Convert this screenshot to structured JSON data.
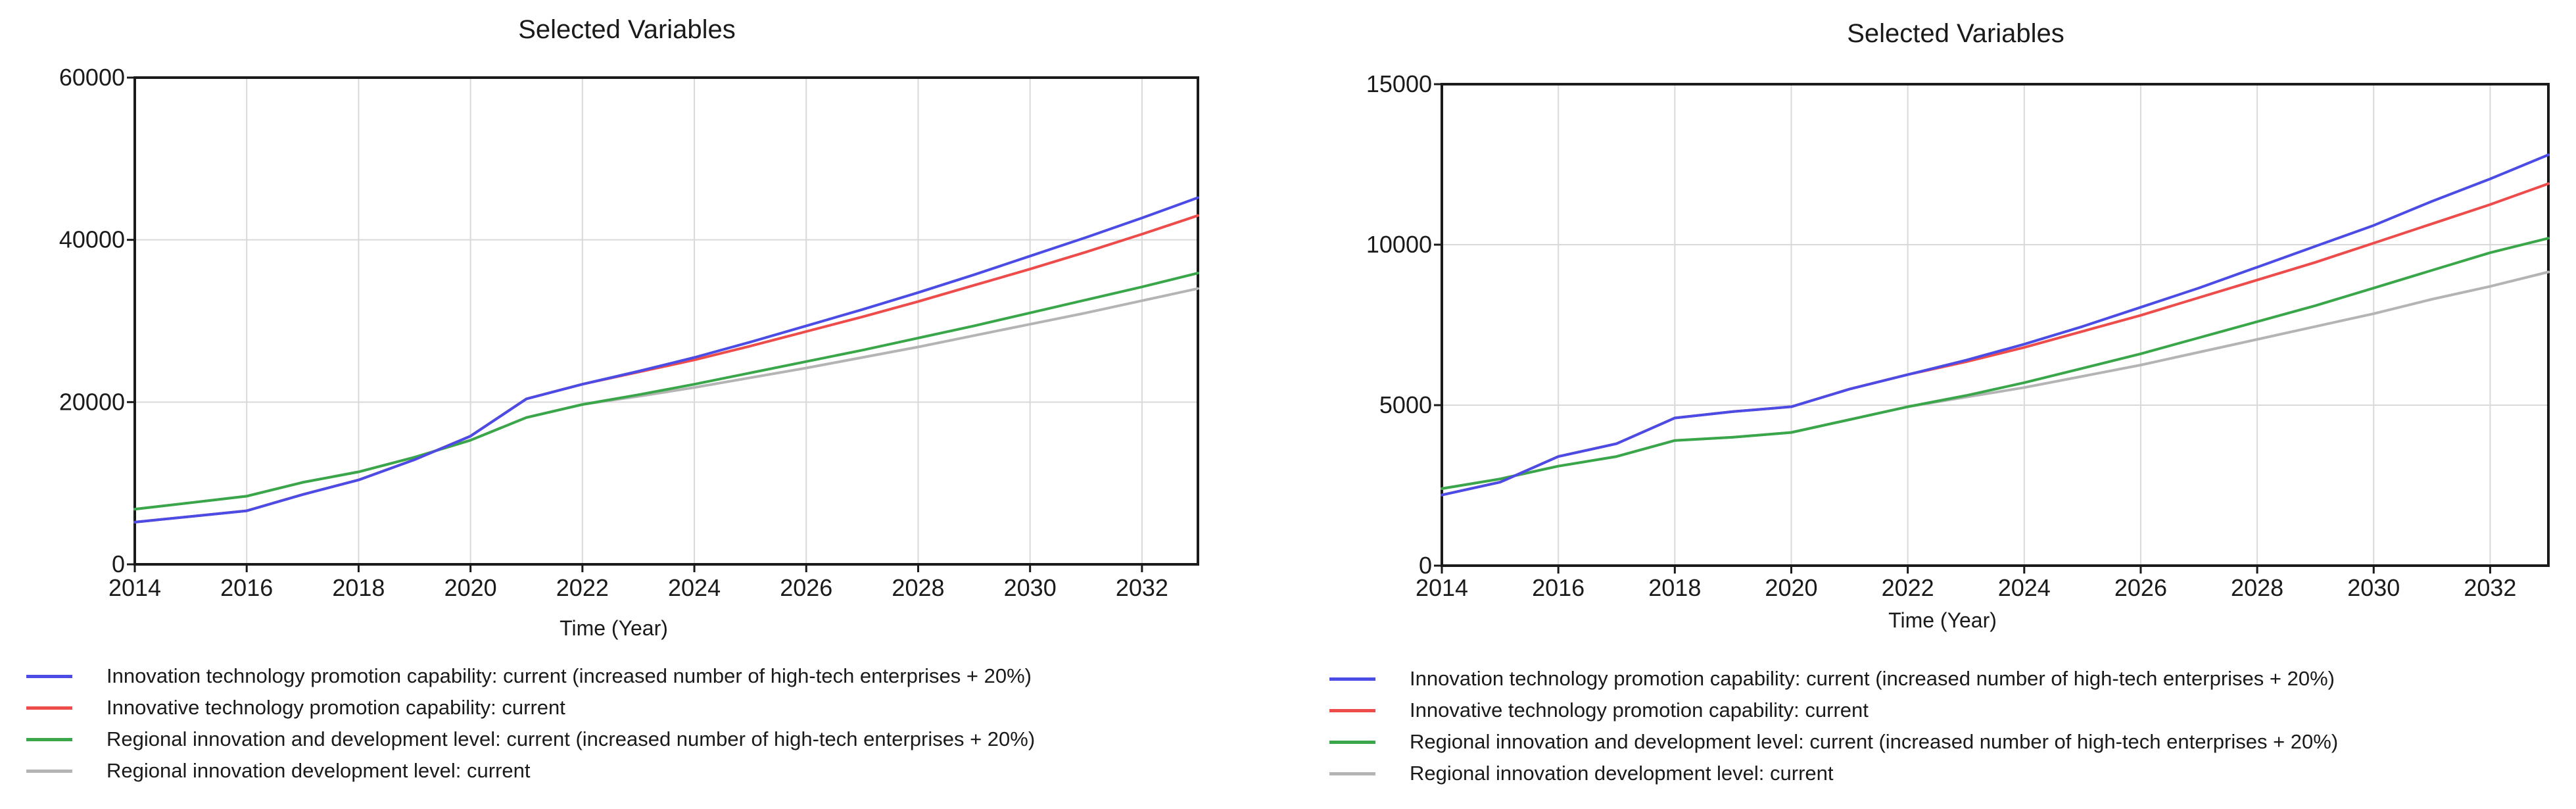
{
  "chart_data": [
    {
      "type": "line",
      "title": "Selected Variables",
      "xlabel": "Time (Year)",
      "ylabel": "",
      "xlim": [
        2014,
        2033
      ],
      "ylim": [
        0,
        60000
      ],
      "x_ticks": [
        2014,
        2016,
        2018,
        2020,
        2022,
        2024,
        2026,
        2028,
        2030,
        2032
      ],
      "y_ticks": [
        0,
        20000,
        40000,
        60000
      ],
      "grid": true,
      "legend_position": "bottom",
      "x": [
        2014,
        2015,
        2016,
        2017,
        2018,
        2019,
        2020,
        2021,
        2022,
        2023,
        2024,
        2025,
        2026,
        2027,
        2028,
        2029,
        2030,
        2031,
        2032,
        2033
      ],
      "series": [
        {
          "name": "Innovation technology promotion capability: current (increased number of high-tech enterprises + 20%)",
          "color": "#4b4be6",
          "values": [
            5200,
            5900,
            6600,
            8600,
            10400,
            12900,
            15800,
            20400,
            22200,
            23800,
            25500,
            27400,
            29400,
            31400,
            33500,
            35700,
            38000,
            40300,
            42700,
            45200
          ]
        },
        {
          "name": "Innovative technology promotion capability: current",
          "color": "#ee4b4b",
          "values": [
            5200,
            5900,
            6600,
            8600,
            10400,
            12900,
            15800,
            20400,
            22200,
            23700,
            25200,
            26900,
            28700,
            30500,
            32400,
            34400,
            36400,
            38500,
            40700,
            43000
          ]
        },
        {
          "name": "Regional innovation and development level: current (increased number of high-tech enterprises + 20%)",
          "color": "#3aa64a",
          "values": [
            6800,
            7600,
            8400,
            10100,
            11400,
            13200,
            15300,
            18100,
            19700,
            20900,
            22200,
            23600,
            25000,
            26400,
            27900,
            29400,
            31000,
            32600,
            34200,
            35900
          ]
        },
        {
          "name": "Regional innovation development level: current",
          "color": "#b4b4b4",
          "values": [
            6800,
            7600,
            8400,
            10100,
            11400,
            13200,
            15300,
            18100,
            19700,
            20700,
            21800,
            23000,
            24200,
            25500,
            26800,
            28200,
            29600,
            31000,
            32500,
            34000
          ]
        }
      ]
    },
    {
      "type": "line",
      "title": "Selected Variables",
      "xlabel": "Time (Year)",
      "ylabel": "",
      "xlim": [
        2014,
        2033
      ],
      "ylim": [
        0,
        15000
      ],
      "x_ticks": [
        2014,
        2016,
        2018,
        2020,
        2022,
        2024,
        2026,
        2028,
        2030,
        2032
      ],
      "y_ticks": [
        0,
        5000,
        10000,
        15000
      ],
      "grid": true,
      "legend_position": "bottom",
      "x": [
        2014,
        2015,
        2016,
        2017,
        2018,
        2019,
        2020,
        2021,
        2022,
        2023,
        2024,
        2025,
        2026,
        2027,
        2028,
        2029,
        2030,
        2031,
        2032,
        2033
      ],
      "series": [
        {
          "name": "Innovation technology promotion capability: current (increased number of high-tech enterprises + 20%)",
          "color": "#4b4be6",
          "values": [
            2200,
            2600,
            3400,
            3800,
            4600,
            4800,
            4950,
            5500,
            5950,
            6400,
            6900,
            7450,
            8050,
            8650,
            9300,
            9950,
            10600,
            11350,
            12050,
            12800
          ]
        },
        {
          "name": "Innovative technology promotion capability: current",
          "color": "#ee4b4b",
          "values": [
            2200,
            2600,
            3400,
            3800,
            4600,
            4800,
            4950,
            5500,
            5950,
            6350,
            6800,
            7300,
            7800,
            8350,
            8900,
            9450,
            10050,
            10650,
            11250,
            11900
          ]
        },
        {
          "name": "Regional innovation and development level: current (increased number of high-tech enterprises + 20%)",
          "color": "#3aa64a",
          "values": [
            2400,
            2700,
            3100,
            3400,
            3900,
            4000,
            4150,
            4550,
            4950,
            5300,
            5700,
            6150,
            6600,
            7100,
            7600,
            8100,
            8650,
            9200,
            9750,
            10200
          ]
        },
        {
          "name": "Regional innovation development level: current",
          "color": "#b4b4b4",
          "values": [
            2400,
            2700,
            3100,
            3400,
            3900,
            4000,
            4150,
            4550,
            4950,
            5250,
            5550,
            5900,
            6250,
            6650,
            7050,
            7450,
            7850,
            8300,
            8700,
            9150
          ]
        }
      ]
    }
  ]
}
